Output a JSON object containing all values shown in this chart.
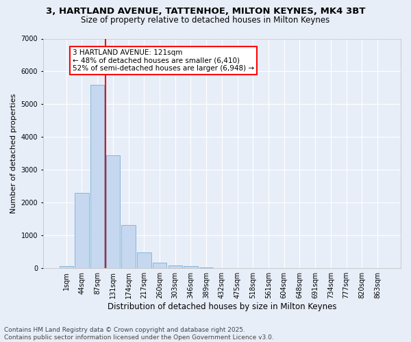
{
  "title_line1": "3, HARTLAND AVENUE, TATTENHOE, MILTON KEYNES, MK4 3BT",
  "title_line2": "Size of property relative to detached houses in Milton Keynes",
  "xlabel": "Distribution of detached houses by size in Milton Keynes",
  "ylabel": "Number of detached properties",
  "bar_color": "#c5d8f0",
  "bar_edge_color": "#7bafd4",
  "background_color": "#e8eef8",
  "grid_color": "#ffffff",
  "categories": [
    "1sqm",
    "44sqm",
    "87sqm",
    "131sqm",
    "174sqm",
    "217sqm",
    "260sqm",
    "303sqm",
    "346sqm",
    "389sqm",
    "432sqm",
    "475sqm",
    "518sqm",
    "561sqm",
    "604sqm",
    "648sqm",
    "691sqm",
    "734sqm",
    "777sqm",
    "820sqm",
    "863sqm"
  ],
  "values": [
    70,
    2300,
    5600,
    3450,
    1320,
    480,
    165,
    90,
    55,
    20,
    8,
    4,
    2,
    1,
    1,
    0,
    0,
    0,
    0,
    0,
    0
  ],
  "ylim": [
    0,
    7000
  ],
  "yticks": [
    0,
    1000,
    2000,
    3000,
    4000,
    5000,
    6000,
    7000
  ],
  "vline_pos": 2.5,
  "annotation_line1": "3 HARTLAND AVENUE: 121sqm",
  "annotation_line2": "← 48% of detached houses are smaller (6,410)",
  "annotation_line3": "52% of semi-detached houses are larger (6,948) →",
  "annotation_box_color": "white",
  "annotation_box_edge": "red",
  "vline_color": "red",
  "footer_line1": "Contains HM Land Registry data © Crown copyright and database right 2025.",
  "footer_line2": "Contains public sector information licensed under the Open Government Licence v3.0.",
  "title_fontsize": 9.5,
  "subtitle_fontsize": 8.5,
  "tick_fontsize": 7,
  "ylabel_fontsize": 8,
  "xlabel_fontsize": 8.5,
  "footer_fontsize": 6.5,
  "annotation_fontsize": 7.5
}
